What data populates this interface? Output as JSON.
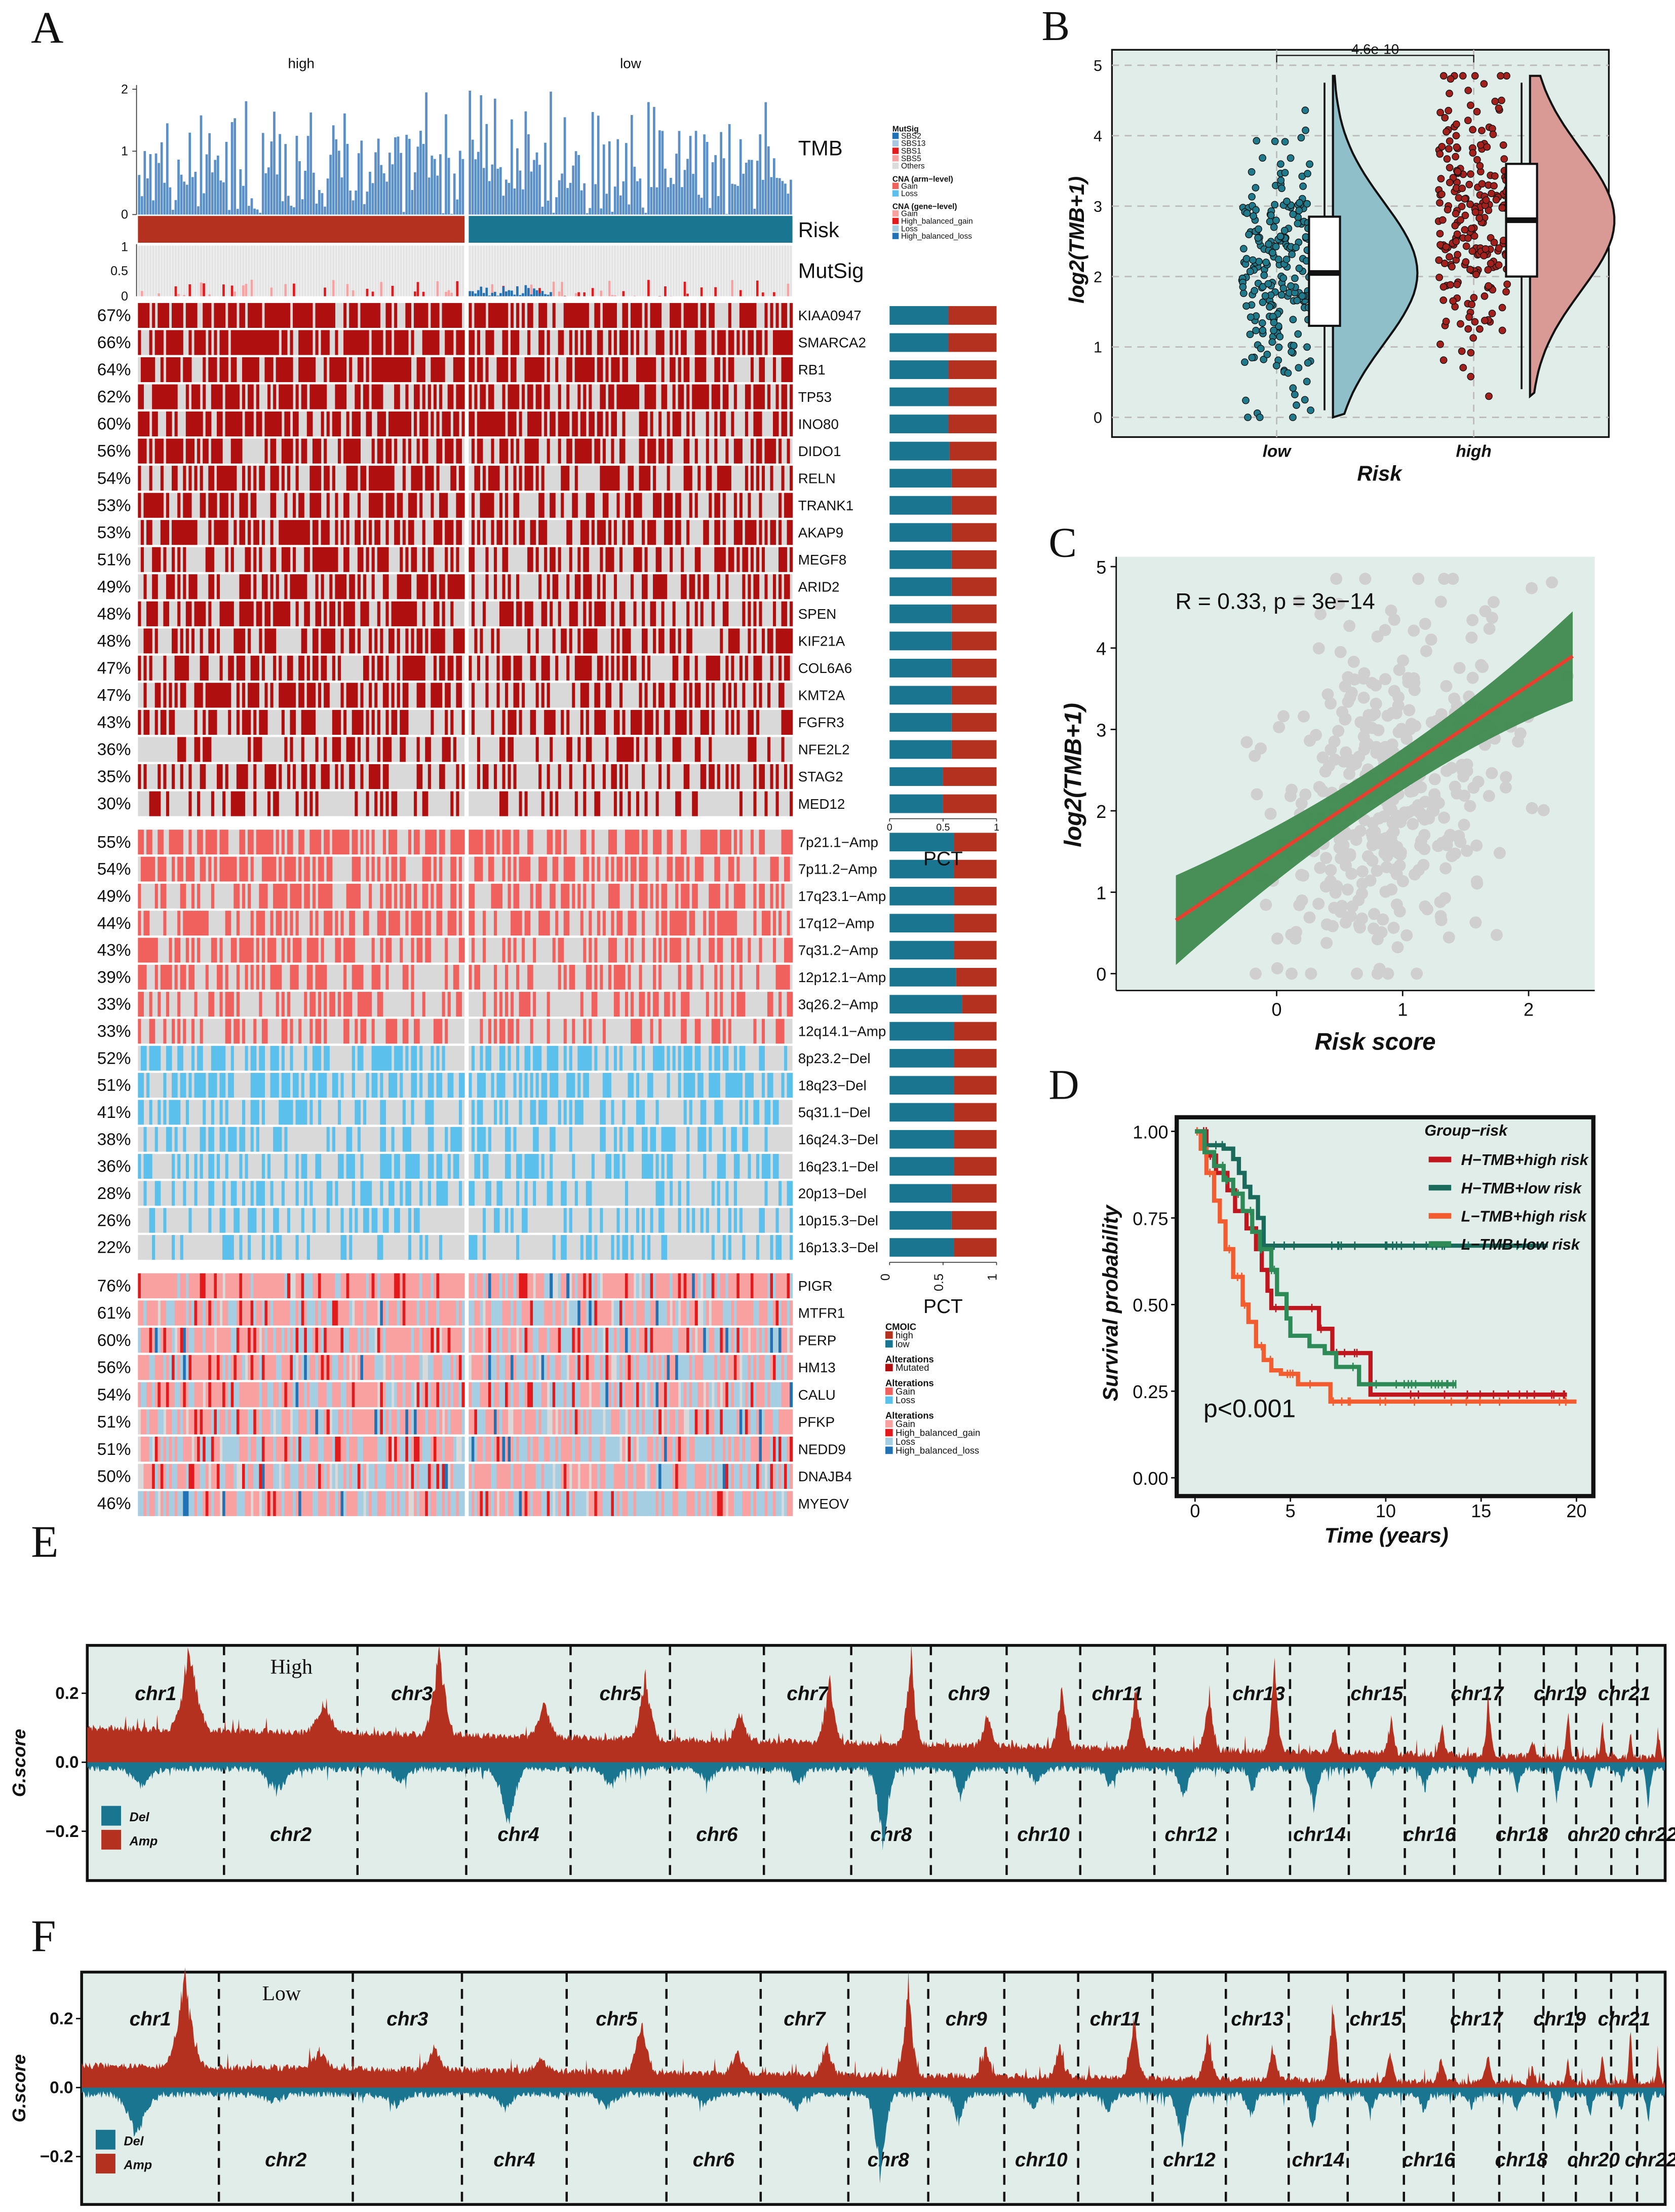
{
  "panel_labels": {
    "a": "A",
    "b": "B",
    "c": "C",
    "d": "D",
    "e": "E",
    "f": "F"
  },
  "panel_a": {
    "groups": [
      "high",
      "low"
    ],
    "tracks": {
      "tmb": "TMB",
      "risk": "Risk",
      "mutsig": "MutSig"
    },
    "tmb_ticks": [
      "2",
      "1",
      "0"
    ],
    "mutsig_ticks": [
      "1",
      "0.5",
      "0"
    ],
    "colors": {
      "high": "#b5311f",
      "low": "#1a7591",
      "mutated": "#b00f10",
      "arm_gain": "#f0605d",
      "arm_loss": "#5bc0eb",
      "none": "#d9d9d9",
      "tmb_bar": "#5b8fc7"
    },
    "mutations": [
      {
        "gene": "KIAA0947",
        "pct": "67%",
        "p": 0.67,
        "pct_low": 0.55
      },
      {
        "gene": "SMARCA2",
        "pct": "66%",
        "p": 0.66,
        "pct_low": 0.55
      },
      {
        "gene": "RB1",
        "pct": "64%",
        "p": 0.64,
        "pct_low": 0.55
      },
      {
        "gene": "TP53",
        "pct": "62%",
        "p": 0.62,
        "pct_low": 0.55
      },
      {
        "gene": "INO80",
        "pct": "60%",
        "p": 0.6,
        "pct_low": 0.55
      },
      {
        "gene": "DIDO1",
        "pct": "56%",
        "p": 0.56,
        "pct_low": 0.56
      },
      {
        "gene": "RELN",
        "pct": "54%",
        "p": 0.54,
        "pct_low": 0.58
      },
      {
        "gene": "TRANK1",
        "pct": "53%",
        "p": 0.53,
        "pct_low": 0.58
      },
      {
        "gene": "AKAP9",
        "pct": "53%",
        "p": 0.53,
        "pct_low": 0.58
      },
      {
        "gene": "MEGF8",
        "pct": "51%",
        "p": 0.51,
        "pct_low": 0.58
      },
      {
        "gene": "ARID2",
        "pct": "49%",
        "p": 0.49,
        "pct_low": 0.58
      },
      {
        "gene": "SPEN",
        "pct": "48%",
        "p": 0.48,
        "pct_low": 0.58
      },
      {
        "gene": "KIF21A",
        "pct": "48%",
        "p": 0.48,
        "pct_low": 0.58
      },
      {
        "gene": "COL6A6",
        "pct": "47%",
        "p": 0.47,
        "pct_low": 0.58
      },
      {
        "gene": "KMT2A",
        "pct": "47%",
        "p": 0.47,
        "pct_low": 0.58
      },
      {
        "gene": "FGFR3",
        "pct": "43%",
        "p": 0.43,
        "pct_low": 0.58
      },
      {
        "gene": "NFE2L2",
        "pct": "36%",
        "p": 0.36,
        "pct_low": 0.58
      },
      {
        "gene": "STAG2",
        "pct": "35%",
        "p": 0.35,
        "pct_low": 0.5
      },
      {
        "gene": "MED12",
        "pct": "30%",
        "p": 0.3,
        "pct_low": 0.5
      }
    ],
    "arm_cna": [
      {
        "region": "7p21.1−Amp",
        "pct": "55%",
        "p": 0.55,
        "type": "gain",
        "pct_low": 0.6
      },
      {
        "region": "7p11.2−Amp",
        "pct": "54%",
        "p": 0.54,
        "type": "gain",
        "pct_low": 0.6
      },
      {
        "region": "17q23.1−Amp",
        "pct": "49%",
        "p": 0.49,
        "type": "gain",
        "pct_low": 0.6
      },
      {
        "region": "17q12−Amp",
        "pct": "44%",
        "p": 0.44,
        "type": "gain",
        "pct_low": 0.6
      },
      {
        "region": "7q31.2−Amp",
        "pct": "43%",
        "p": 0.43,
        "type": "gain",
        "pct_low": 0.6
      },
      {
        "region": "12p12.1−Amp",
        "pct": "39%",
        "p": 0.39,
        "type": "gain",
        "pct_low": 0.62
      },
      {
        "region": "3q26.2−Amp",
        "pct": "33%",
        "p": 0.33,
        "type": "gain",
        "pct_low": 0.68
      },
      {
        "region": "12q14.1−Amp",
        "pct": "33%",
        "p": 0.33,
        "type": "gain",
        "pct_low": 0.6
      },
      {
        "region": "8p23.2−Del",
        "pct": "52%",
        "p": 0.52,
        "type": "loss",
        "pct_low": 0.6
      },
      {
        "region": "18q23−Del",
        "pct": "51%",
        "p": 0.51,
        "type": "loss",
        "pct_low": 0.6
      },
      {
        "region": "5q31.1−Del",
        "pct": "41%",
        "p": 0.41,
        "type": "loss",
        "pct_low": 0.6
      },
      {
        "region": "16q24.3−Del",
        "pct": "38%",
        "p": 0.38,
        "type": "loss",
        "pct_low": 0.6
      },
      {
        "region": "16q23.1−Del",
        "pct": "36%",
        "p": 0.36,
        "type": "loss",
        "pct_low": 0.6
      },
      {
        "region": "20p13−Del",
        "pct": "28%",
        "p": 0.28,
        "type": "loss",
        "pct_low": 0.58
      },
      {
        "region": "10p15.3−Del",
        "pct": "26%",
        "p": 0.26,
        "type": "loss",
        "pct_low": 0.58
      },
      {
        "region": "16p13.3−Del",
        "pct": "22%",
        "p": 0.22,
        "type": "loss",
        "pct_low": 0.6
      }
    ],
    "gene_cna": [
      {
        "gene": "PIGR",
        "pct": "76%",
        "p": 0.76
      },
      {
        "gene": "MTFR1",
        "pct": "61%",
        "p": 0.61
      },
      {
        "gene": "PERP",
        "pct": "60%",
        "p": 0.6
      },
      {
        "gene": "HM13",
        "pct": "56%",
        "p": 0.56
      },
      {
        "gene": "CALU",
        "pct": "54%",
        "p": 0.54
      },
      {
        "gene": "PFKP",
        "pct": "51%",
        "p": 0.51
      },
      {
        "gene": "NEDD9",
        "pct": "51%",
        "p": 0.51
      },
      {
        "gene": "DNAJB4",
        "pct": "50%",
        "p": 0.5
      },
      {
        "gene": "MYEOV",
        "pct": "46%",
        "p": 0.46
      }
    ],
    "pct_axis": {
      "ticks": [
        "0",
        "0.5",
        "1"
      ],
      "label": "PCT"
    },
    "legend_top": [
      {
        "title": "MutSig",
        "items": [
          {
            "label": "SBS2",
            "color": "#2171b5"
          },
          {
            "label": "SBS13",
            "color": "#a6c8e0"
          },
          {
            "label": "SBS1",
            "color": "#e31a1c"
          },
          {
            "label": "SBS5",
            "color": "#f7a1a1"
          },
          {
            "label": "Others",
            "color": "#dcdcdc"
          }
        ]
      },
      {
        "title": "CNA (arm−level)",
        "items": [
          {
            "label": "Gain",
            "color": "#f0605d"
          },
          {
            "label": "Loss",
            "color": "#5bc0eb"
          }
        ]
      },
      {
        "title": "CNA (gene−level)",
        "items": [
          {
            "label": "Gain",
            "color": "#f9a0a0"
          },
          {
            "label": "High_balanced_gain",
            "color": "#e31a1c"
          },
          {
            "label": "Loss",
            "color": "#a6cee3"
          },
          {
            "label": "High_balanced_loss",
            "color": "#2171b5"
          }
        ]
      }
    ],
    "legend_bottom": [
      {
        "title": "CMOIC",
        "items": [
          {
            "label": "high",
            "color": "#b5311f"
          },
          {
            "label": "low",
            "color": "#1a7591"
          }
        ]
      },
      {
        "title": "Alterations",
        "items": [
          {
            "label": "Mutated",
            "color": "#b00f10"
          }
        ]
      },
      {
        "title": "Alterations",
        "items": [
          {
            "label": "Gain",
            "color": "#f0605d"
          },
          {
            "label": "Loss",
            "color": "#5bc0eb"
          }
        ]
      },
      {
        "title": "Alterations",
        "items": [
          {
            "label": "Gain",
            "color": "#f9a0a0"
          },
          {
            "label": "High_balanced_gain",
            "color": "#e31a1c"
          },
          {
            "label": "Loss",
            "color": "#a6cee3"
          },
          {
            "label": "High_balanced_loss",
            "color": "#2171b5"
          }
        ]
      }
    ]
  },
  "chart_data": [
    {
      "id": "B",
      "type": "scatter",
      "title": "",
      "xlabel": "Risk",
      "ylabel": "log2(TMB+1)",
      "categories": [
        "low",
        "high"
      ],
      "yticks": [
        "0",
        "1",
        "2",
        "3",
        "4",
        "5"
      ],
      "ylim": [
        0,
        5
      ],
      "pvalue": "4.6e-10",
      "boxes": [
        {
          "group": "low",
          "min": 0,
          "q1": 1.3,
          "median": 2.05,
          "q3": 2.85,
          "max": 4.85,
          "color": "#1f7a8c",
          "fill": "#8fbfc9"
        },
        {
          "group": "high",
          "min": 0.3,
          "q1": 2.0,
          "median": 2.8,
          "q3": 3.6,
          "max": 4.85,
          "color": "#a3201c",
          "fill": "#d99a95"
        }
      ]
    },
    {
      "id": "C",
      "type": "scatter",
      "xlabel": "Risk score",
      "ylabel": "log2(TMB+1)",
      "xticks": [
        "0",
        "1",
        "2"
      ],
      "yticks": [
        "0",
        "1",
        "2",
        "3",
        "4",
        "5"
      ],
      "xlim": [
        -0.85,
        2.5
      ],
      "ylim": [
        -0.1,
        5.05
      ],
      "annotation": "R = 0.33, p = 3e−14",
      "regression": {
        "slope": 1.03,
        "intercept": 1.48,
        "x_range": [
          -0.8,
          2.35
        ]
      },
      "n_points": 420
    },
    {
      "id": "D",
      "type": "line",
      "xlabel": "Time (years)",
      "ylabel": "Survival probability",
      "xticks": [
        "0",
        "5",
        "10",
        "15",
        "20"
      ],
      "yticks": [
        "0.00",
        "0.25",
        "0.50",
        "0.75",
        "1.00"
      ],
      "xlim": [
        0,
        20
      ],
      "ylim": [
        0,
        1
      ],
      "legend_title": "Group−risk",
      "legend_position": "top-right",
      "annotation": "p<0.001",
      "series": [
        {
          "name": "H−TMB+high risk",
          "color": "#c0171f",
          "points": [
            [
              0,
              1
            ],
            [
              0.6,
              0.93
            ],
            [
              1.1,
              0.88
            ],
            [
              1.7,
              0.83
            ],
            [
              2.1,
              0.77
            ],
            [
              2.7,
              0.72
            ],
            [
              3.2,
              0.66
            ],
            [
              3.5,
              0.6
            ],
            [
              3.8,
              0.54
            ],
            [
              4,
              0.49
            ],
            [
              6.5,
              0.43
            ],
            [
              7.2,
              0.36
            ],
            [
              9.2,
              0.24
            ],
            [
              19.5,
              0.24
            ]
          ]
        },
        {
          "name": "H−TMB+low risk",
          "color": "#1a6b5c",
          "points": [
            [
              0,
              1
            ],
            [
              0.5,
              0.96
            ],
            [
              1.5,
              0.95
            ],
            [
              2,
              0.92
            ],
            [
              2.3,
              0.88
            ],
            [
              2.6,
              0.84
            ],
            [
              2.9,
              0.81
            ],
            [
              3.3,
              0.75
            ],
            [
              3.6,
              0.67
            ],
            [
              18.5,
              0.67
            ]
          ]
        },
        {
          "name": "L−TMB+high risk",
          "color": "#f25c2e",
          "points": [
            [
              0,
              1
            ],
            [
              0.3,
              0.95
            ],
            [
              0.6,
              0.88
            ],
            [
              1,
              0.8
            ],
            [
              1.3,
              0.74
            ],
            [
              1.6,
              0.66
            ],
            [
              2,
              0.58
            ],
            [
              2.5,
              0.5
            ],
            [
              2.8,
              0.45
            ],
            [
              3.2,
              0.38
            ],
            [
              3.6,
              0.34
            ],
            [
              4,
              0.31
            ],
            [
              4.5,
              0.3
            ],
            [
              5.4,
              0.27
            ],
            [
              7.1,
              0.22
            ],
            [
              20,
              0.22
            ]
          ]
        },
        {
          "name": "L−TMB+low risk",
          "color": "#2e8b57",
          "points": [
            [
              0,
              1
            ],
            [
              0.5,
              0.94
            ],
            [
              1,
              0.9
            ],
            [
              1.5,
              0.86
            ],
            [
              2,
              0.82
            ],
            [
              2.5,
              0.77
            ],
            [
              3,
              0.71
            ],
            [
              3.4,
              0.66
            ],
            [
              4,
              0.6
            ],
            [
              4.3,
              0.53
            ],
            [
              4.8,
              0.46
            ],
            [
              5,
              0.41
            ],
            [
              6,
              0.38
            ],
            [
              6.8,
              0.36
            ],
            [
              7.4,
              0.32
            ],
            [
              8.6,
              0.27
            ],
            [
              13.7,
              0.27
            ]
          ]
        }
      ]
    },
    {
      "id": "E",
      "type": "area",
      "title": "High",
      "ylabel": "G.score",
      "yticks": [
        "0.2",
        "0.0",
        "−0.2"
      ],
      "ylim": [
        -0.3,
        0.3
      ],
      "legend": [
        {
          "label": "Del",
          "color": "#1a7591"
        },
        {
          "label": "Amp",
          "color": "#b5311f"
        }
      ],
      "chromosomes": [
        "chr1",
        "chr2",
        "chr3",
        "chr4",
        "chr5",
        "chr6",
        "chr7",
        "chr8",
        "chr9",
        "chr10",
        "chr11",
        "chr12",
        "chr13",
        "chr14",
        "chr15",
        "chr16",
        "chr17",
        "chr18",
        "chr19",
        "chr20",
        "chr21",
        "chr22"
      ],
      "chr_length_mb": [
        249,
        243,
        198,
        190,
        181,
        171,
        159,
        145,
        138,
        134,
        135,
        133,
        114,
        107,
        102,
        90,
        83,
        80,
        59,
        64,
        47,
        51
      ],
      "amp_peak": [
        0.28,
        0.1,
        0.3,
        0.12,
        0.22,
        0.1,
        0.23,
        0.3,
        0.12,
        0.2,
        0.22,
        0.2,
        0.29,
        0.08,
        0.12,
        0.1,
        0.22,
        0.05,
        0.18,
        0.12,
        0.1,
        0.1
      ],
      "del_peak": [
        -0.06,
        -0.08,
        -0.05,
        -0.2,
        -0.06,
        -0.05,
        -0.05,
        -0.27,
        -0.1,
        -0.06,
        -0.06,
        -0.1,
        -0.08,
        -0.15,
        -0.06,
        -0.07,
        -0.05,
        -0.08,
        -0.12,
        -0.08,
        -0.06,
        -0.15
      ]
    },
    {
      "id": "F",
      "type": "area",
      "title": "Low",
      "ylabel": "G.score",
      "yticks": [
        "0.2",
        "0.0",
        "−0.2"
      ],
      "ylim": [
        -0.3,
        0.3
      ],
      "legend": [
        {
          "label": "Del",
          "color": "#1a7591"
        },
        {
          "label": "Amp",
          "color": "#b5311f"
        }
      ],
      "chromosomes": [
        "chr1",
        "chr2",
        "chr3",
        "chr4",
        "chr5",
        "chr6",
        "chr7",
        "chr8",
        "chr9",
        "chr10",
        "chr11",
        "chr12",
        "chr13",
        "chr14",
        "chr15",
        "chr16",
        "chr17",
        "chr18",
        "chr19",
        "chr20",
        "chr21",
        "chr22"
      ],
      "chr_length_mb": [
        249,
        243,
        198,
        190,
        181,
        171,
        159,
        145,
        138,
        134,
        135,
        133,
        114,
        107,
        102,
        90,
        83,
        80,
        59,
        64,
        47,
        51
      ],
      "amp_peak": [
        0.3,
        0.06,
        0.08,
        0.05,
        0.18,
        0.08,
        0.12,
        0.3,
        0.1,
        0.1,
        0.2,
        0.15,
        0.12,
        0.28,
        0.1,
        0.08,
        0.1,
        0.06,
        0.1,
        0.1,
        0.22,
        0.08
      ],
      "del_peak": [
        -0.15,
        -0.03,
        -0.04,
        -0.05,
        -0.05,
        -0.04,
        -0.05,
        -0.28,
        -0.1,
        -0.05,
        -0.06,
        -0.18,
        -0.08,
        -0.12,
        -0.06,
        -0.06,
        -0.05,
        -0.06,
        -0.08,
        -0.08,
        -0.06,
        -0.1
      ]
    }
  ]
}
